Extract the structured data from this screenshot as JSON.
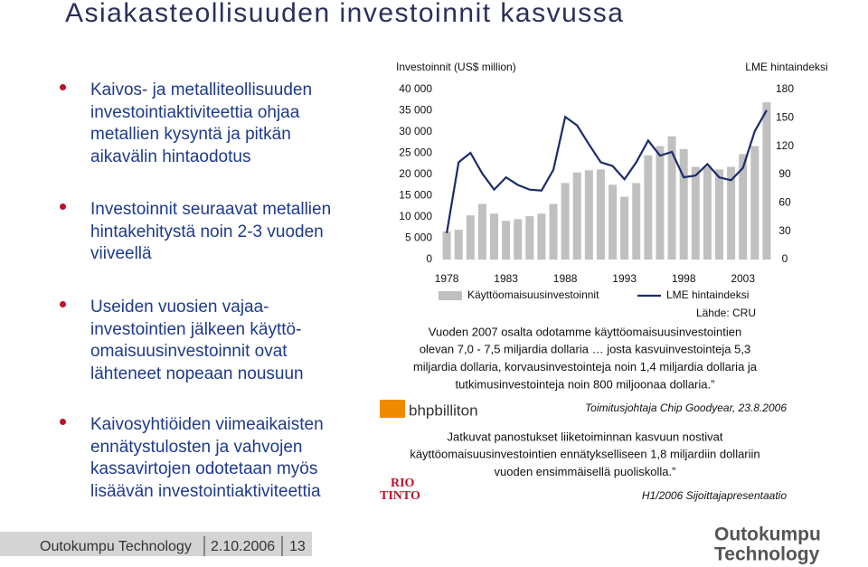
{
  "title": "Asiakasteollisuuden investoinnit kasvussa",
  "bullets": [
    {
      "lines": [
        "Kaivos- ja metalliteollisuuden",
        "investointiaktiviteettia ohjaa",
        "metallien kysyntä ja pitkän",
        "aikavälin hintaodotus"
      ]
    },
    {
      "lines": [
        "Investoinnit seuraavat metallien",
        "hintakehitystä noin 2-3 vuoden",
        "viiveellä"
      ]
    },
    {
      "lines": [
        "Useiden vuosien vajaa-",
        "investointien jälkeen käyttö-",
        "omaisuusinvestoinnit ovat",
        "lähteneet nopeaan nousuun"
      ]
    },
    {
      "lines": [
        "Kaivosyhtiöiden viimeaikaisten",
        "ennätystulosten ja vahvojen",
        "kassavirtojen odotetaan myös",
        "lisäävän investointiaktiviteettia"
      ]
    }
  ],
  "chart_data": {
    "type": "bar",
    "y_label": "Investoinnit (US$ million)",
    "y2_label": "LME hintaindeksi",
    "source": "Lähde: CRU",
    "legend": "bottom",
    "x": [
      1978,
      1979,
      1980,
      1981,
      1982,
      1983,
      1984,
      1985,
      1986,
      1987,
      1988,
      1989,
      1990,
      1991,
      1992,
      1993,
      1994,
      1995,
      1996,
      1997,
      1998,
      1999,
      2000,
      2001,
      2002,
      2003,
      2004,
      2005
    ],
    "xlim": [
      1977,
      2006
    ],
    "xticks": [
      1978,
      1983,
      1988,
      1993,
      1998,
      2003
    ],
    "ylim": [
      0,
      40000
    ],
    "yticks": [
      0,
      {
        "value": 5000,
        "label": "5 000"
      },
      {
        "value": 10000,
        "label": "10 000"
      },
      {
        "value": 15000,
        "label": "15 000"
      },
      {
        "value": 20000,
        "label": "20 000"
      },
      {
        "value": 25000,
        "label": "25 000"
      },
      {
        "value": 30000,
        "label": "30 000"
      },
      {
        "value": 35000,
        "label": "35 000"
      },
      {
        "value": 40000,
        "label": "40 000"
      }
    ],
    "y2lim": [
      0,
      180
    ],
    "y2ticks": [
      0,
      30,
      60,
      90,
      120,
      150,
      180
    ],
    "series": [
      {
        "name": "Käyttöomaisuusinvestoinnit",
        "type": "bar",
        "color": "#c0c0c0",
        "values": [
          6600,
          7000,
          10400,
          13100,
          10800,
          9100,
          9500,
          10200,
          10800,
          13100,
          18000,
          20500,
          21000,
          21200,
          17600,
          14800,
          18000,
          24500,
          26700,
          29000,
          26000,
          21800,
          21800,
          21200,
          21800,
          24800,
          26700,
          37000
        ]
      },
      {
        "name": "LME hintaindeksi",
        "type": "line",
        "axis": "y2",
        "color": "#1c2b6b",
        "values": [
          28,
          103,
          113,
          91,
          74,
          87,
          79,
          74,
          73,
          95,
          151,
          142,
          122,
          103,
          99,
          85,
          103,
          126,
          110,
          114,
          87,
          89,
          101,
          87,
          84,
          97,
          136,
          158
        ]
      }
    ]
  },
  "quotes": [
    {
      "lines": [
        "Vuoden 2007 osalta odotamme käyttöomaisuusinvestointien",
        "olevan 7,0 - 7,5 miljardia dollaria … josta kasvuinvestointeja 5,3",
        "miljardia dollaria, korvausinvestointeja noin 1,4 miljardia dollaria ja",
        "tutkimusinvestointeja noin 800 miljoonaa dollaria.”"
      ],
      "source": "Toimitusjohtaja Chip Goodyear, 23.8.2006",
      "logo": "bhpbilliton"
    },
    {
      "lines": [
        "Jatkuvat panostukset liiketoiminnan kasvuun nostivat",
        "käyttöomaisuusinvestointien ennätykselliseen 1,8 miljardiin dollariin",
        "vuoden ensimmäisellä puoliskolla.”"
      ],
      "source": "H1/2006 Sijoittajapresentaatio",
      "logo": [
        "RIO",
        "TINTO"
      ]
    }
  ],
  "footer": {
    "company": "Outokumpu Technology",
    "date": "2.10.2006",
    "page": "13",
    "logo": [
      "Outokumpu",
      "Technology"
    ]
  }
}
